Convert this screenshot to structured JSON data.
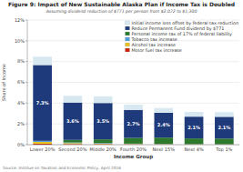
{
  "chart_data": {
    "type": "bar",
    "stacked": true,
    "title": "Figure 9: Impact of New Sustainable Alaska Plan if Income Tax is Doubled",
    "subtitle": "Assuming dividend reduction of $771 per person from $2,072 to $1,300",
    "x_label": "Income Group",
    "y_label": "Share of Income",
    "annotations": [
      "Source: Institue on Taxation and Economic Policy, April 2016"
    ],
    "categories": [
      "Lower 20%",
      "Second 20%",
      "Middle 20%",
      "Fourth 20%",
      "Next 15%",
      "Next 4%",
      "Top 1%"
    ],
    "series": [
      {
        "name": "Motor fuel tax increase",
        "color": "#cc2200",
        "values": [
          0.09,
          0.06,
          0.05,
          0.03,
          0.025,
          0.015,
          0.01
        ]
      },
      {
        "name": "Alcohol tax increase",
        "color": "#e8c020",
        "values": [
          0.18,
          0.09,
          0.06,
          0.04,
          0.03,
          0.02,
          0.015
        ]
      },
      {
        "name": "Tobacco tax increase",
        "color": "#4a9fd4",
        "values": [
          0.1,
          0.06,
          0.05,
          0.03,
          0.025,
          0.015,
          0.01
        ]
      },
      {
        "name": "Personal income tax of 17% of federal liability",
        "color": "#2d7a2d",
        "values": [
          0.0,
          0.25,
          0.35,
          0.55,
          0.6,
          0.55,
          0.55
        ]
      },
      {
        "name": "Reduce Permanent Fund dividend by $771",
        "color": "#1e3a7a",
        "values": [
          7.3,
          3.6,
          3.5,
          2.7,
          2.4,
          2.1,
          2.1
        ],
        "data_labels": true,
        "value_labels": [
          "7.3%",
          "3.6%",
          "3.5%",
          "2.7%",
          "2.4%",
          "2.1%",
          "2.1%"
        ]
      },
      {
        "name": "Initial income loss offset by federal tax reduction",
        "color": "#d8e8f0",
        "values": [
          0.8,
          0.65,
          0.65,
          0.5,
          0.45,
          0.45,
          0.45
        ]
      }
    ],
    "ylim": [
      0,
      12
    ],
    "yticks": [
      {
        "value": 0,
        "label": "0%"
      },
      {
        "value": 2,
        "label": "2%"
      },
      {
        "value": 4,
        "label": "4%"
      },
      {
        "value": 6,
        "label": "6%"
      },
      {
        "value": 8,
        "label": "8%"
      },
      {
        "value": 10,
        "label": "10%"
      },
      {
        "value": 12,
        "label": "12%"
      }
    ],
    "grid": true,
    "legend": "upper right"
  }
}
